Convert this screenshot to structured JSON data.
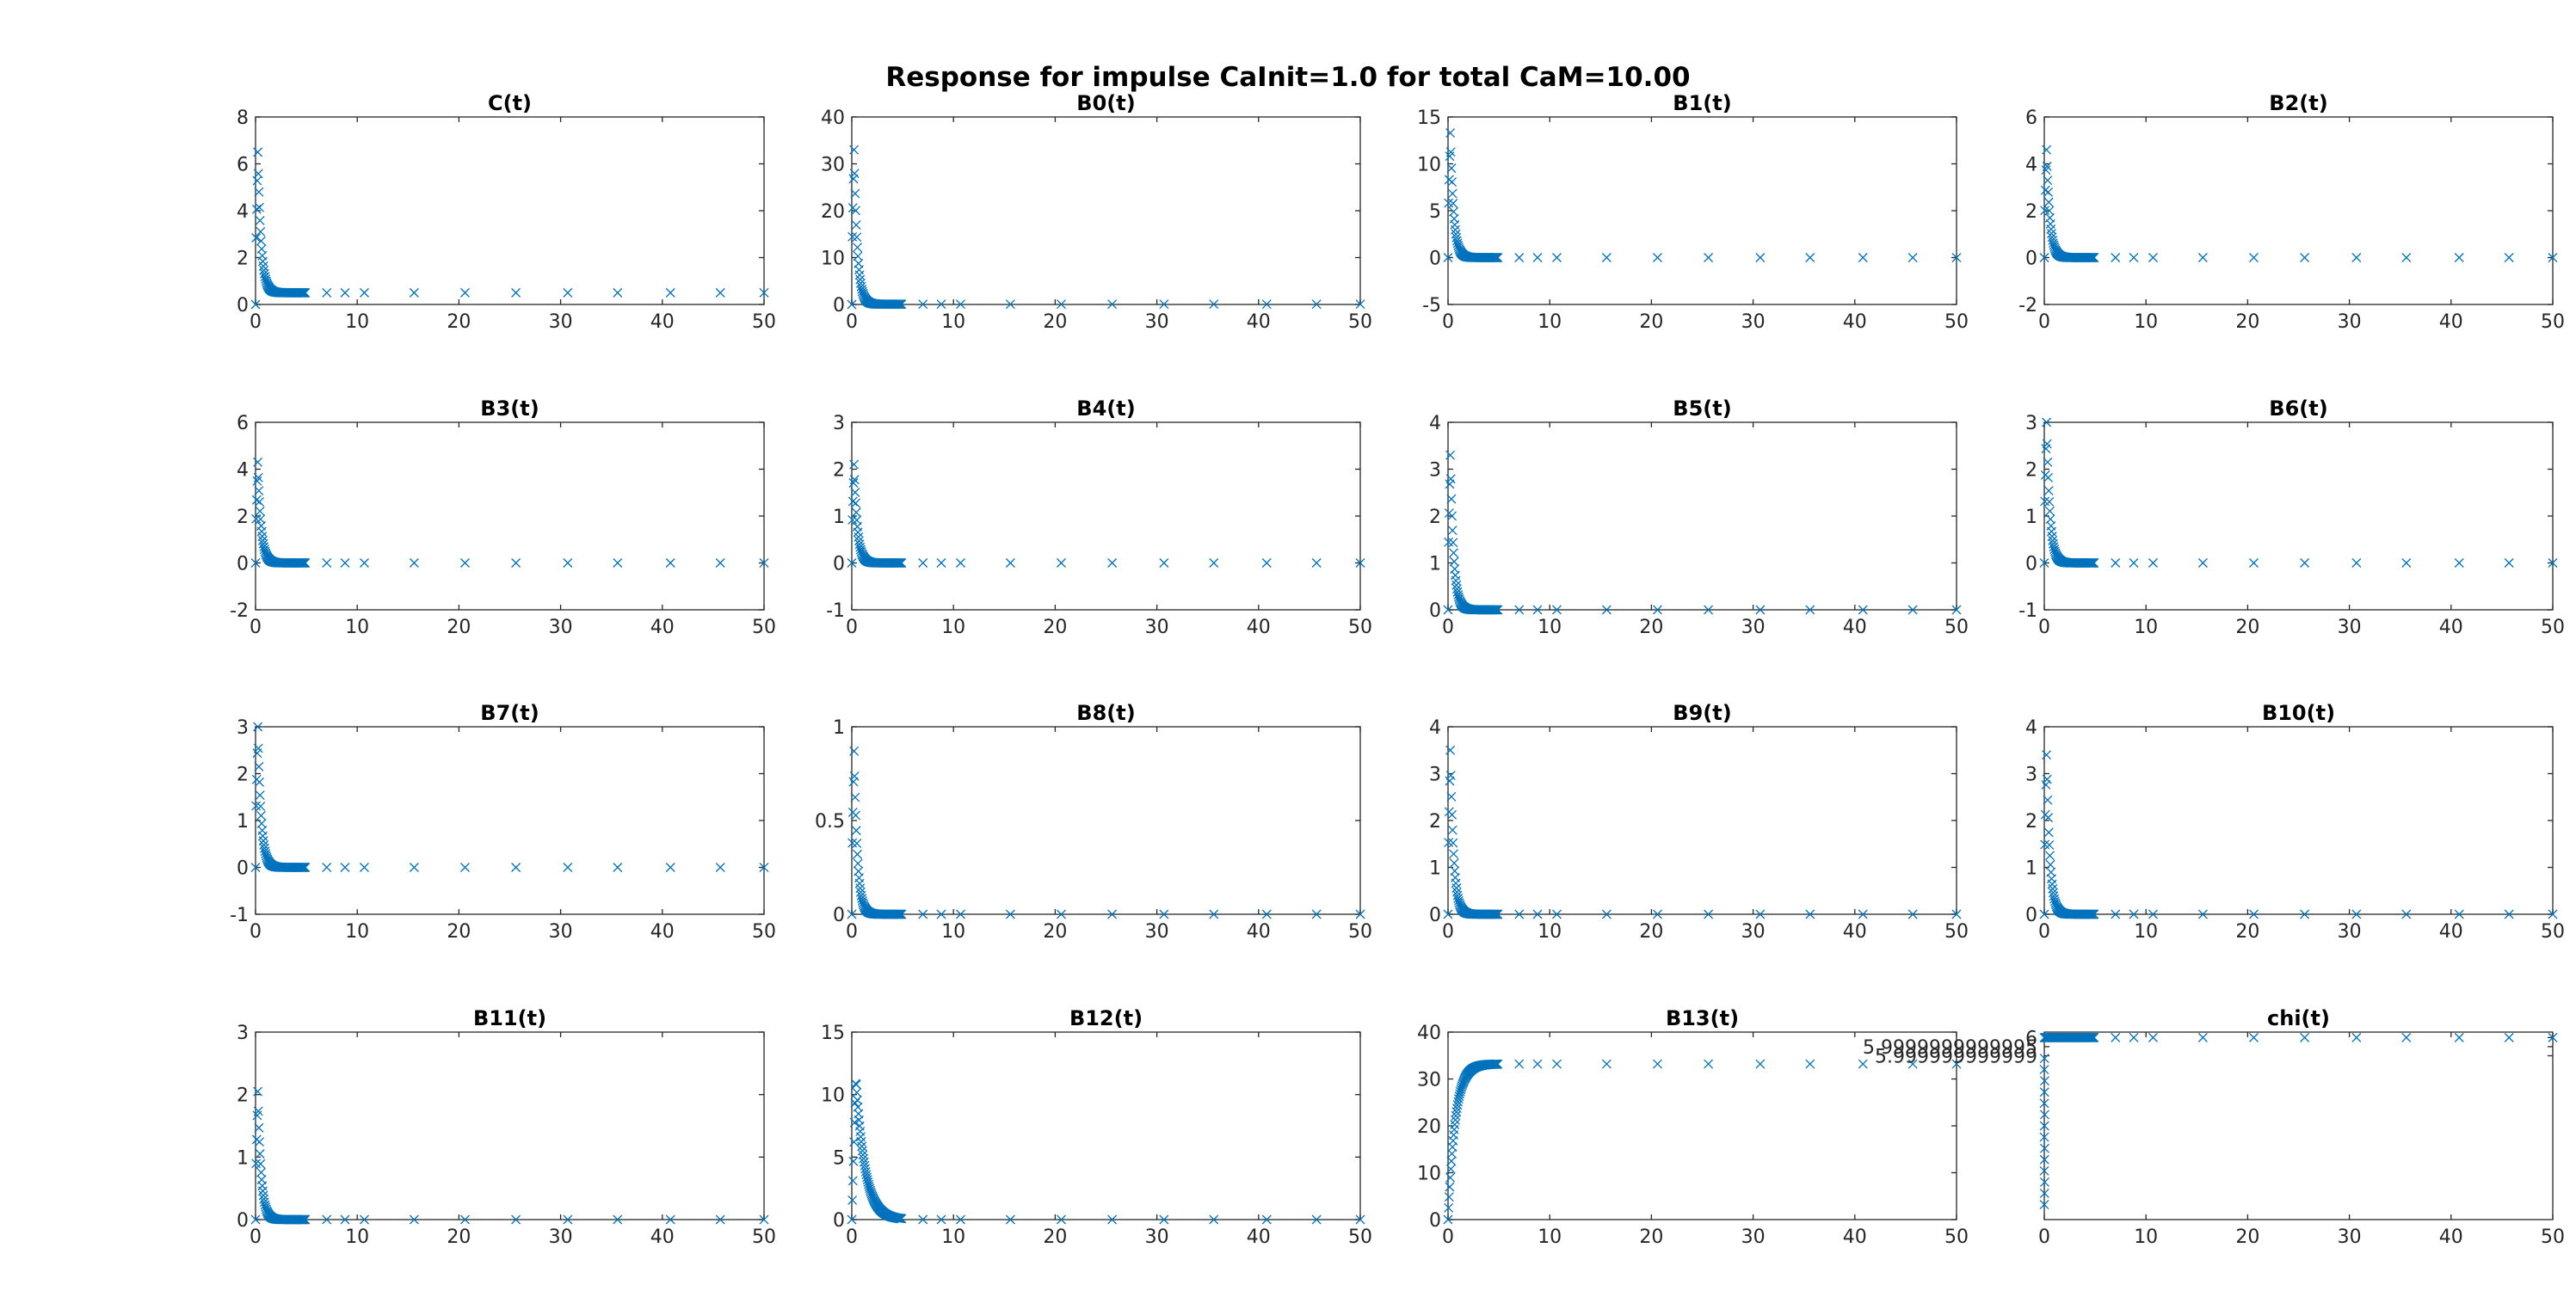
{
  "figure_title": "Response for impulse CaInit=1.0 for total CaM=10.00",
  "colors": {
    "series": "#0072BD",
    "axis": "#262626",
    "background": "#ffffff"
  },
  "marker": "x",
  "chart_data": [
    {
      "type": "scatter",
      "title": "C(t)",
      "xlim": [
        0,
        50
      ],
      "ylim": [
        0,
        8
      ],
      "xticks": [
        "0",
        "10",
        "20",
        "30",
        "40",
        "50"
      ],
      "yticks": [
        "0",
        "2",
        "4",
        "6",
        "8"
      ],
      "profile": "decay",
      "peak": 6.5,
      "final": 0.5
    },
    {
      "type": "scatter",
      "title": "B0(t)",
      "xlim": [
        0,
        50
      ],
      "ylim": [
        0,
        40
      ],
      "xticks": [
        "0",
        "10",
        "20",
        "30",
        "40",
        "50"
      ],
      "yticks": [
        "0",
        "10",
        "20",
        "30",
        "40"
      ],
      "profile": "decay",
      "peak": 33,
      "final": 0.05
    },
    {
      "type": "scatter",
      "title": "B1(t)",
      "xlim": [
        0,
        50
      ],
      "ylim": [
        -5,
        15
      ],
      "xticks": [
        "0",
        "10",
        "20",
        "30",
        "40",
        "50"
      ],
      "yticks": [
        "-5",
        "0",
        "5",
        "10",
        "15"
      ],
      "profile": "decay",
      "peak": 13.3,
      "final": 0
    },
    {
      "type": "scatter",
      "title": "B2(t)",
      "xlim": [
        0,
        50
      ],
      "ylim": [
        -2,
        6
      ],
      "xticks": [
        "0",
        "10",
        "20",
        "30",
        "40",
        "50"
      ],
      "yticks": [
        "-2",
        "0",
        "2",
        "4",
        "6"
      ],
      "profile": "decay",
      "peak": 4.6,
      "final": 0
    },
    {
      "type": "scatter",
      "title": "B3(t)",
      "xlim": [
        0,
        50
      ],
      "ylim": [
        -2,
        6
      ],
      "xticks": [
        "0",
        "10",
        "20",
        "30",
        "40",
        "50"
      ],
      "yticks": [
        "-2",
        "0",
        "2",
        "4",
        "6"
      ],
      "profile": "decay",
      "peak": 4.3,
      "final": 0
    },
    {
      "type": "scatter",
      "title": "B4(t)",
      "xlim": [
        0,
        50
      ],
      "ylim": [
        -1,
        3
      ],
      "xticks": [
        "0",
        "10",
        "20",
        "30",
        "40",
        "50"
      ],
      "yticks": [
        "-1",
        "0",
        "1",
        "2",
        "3"
      ],
      "profile": "decay",
      "peak": 2.1,
      "final": 0
    },
    {
      "type": "scatter",
      "title": "B5(t)",
      "xlim": [
        0,
        50
      ],
      "ylim": [
        0,
        4
      ],
      "xticks": [
        "0",
        "10",
        "20",
        "30",
        "40",
        "50"
      ],
      "yticks": [
        "0",
        "1",
        "2",
        "3",
        "4"
      ],
      "profile": "decay",
      "peak": 3.3,
      "final": 0
    },
    {
      "type": "scatter",
      "title": "B6(t)",
      "xlim": [
        0,
        50
      ],
      "ylim": [
        -1,
        3
      ],
      "xticks": [
        "0",
        "10",
        "20",
        "30",
        "40",
        "50"
      ],
      "yticks": [
        "-1",
        "0",
        "1",
        "2",
        "3"
      ],
      "profile": "decay",
      "peak": 3,
      "final": 0
    },
    {
      "type": "scatter",
      "title": "B7(t)",
      "xlim": [
        0,
        50
      ],
      "ylim": [
        -1,
        3
      ],
      "xticks": [
        "0",
        "10",
        "20",
        "30",
        "40",
        "50"
      ],
      "yticks": [
        "-1",
        "0",
        "1",
        "2",
        "3"
      ],
      "profile": "decay",
      "peak": 3,
      "final": 0
    },
    {
      "type": "scatter",
      "title": "B8(t)",
      "xlim": [
        0,
        50
      ],
      "ylim": [
        0,
        1
      ],
      "xticks": [
        "0",
        "10",
        "20",
        "30",
        "40",
        "50"
      ],
      "yticks": [
        "0",
        "0.5",
        "1"
      ],
      "profile": "decay",
      "peak": 0.87,
      "final": 0
    },
    {
      "type": "scatter",
      "title": "B9(t)",
      "xlim": [
        0,
        50
      ],
      "ylim": [
        0,
        4
      ],
      "xticks": [
        "0",
        "10",
        "20",
        "30",
        "40",
        "50"
      ],
      "yticks": [
        "0",
        "1",
        "2",
        "3",
        "4"
      ],
      "profile": "decay",
      "peak": 3.5,
      "final": 0
    },
    {
      "type": "scatter",
      "title": "B10(t)",
      "xlim": [
        0,
        50
      ],
      "ylim": [
        0,
        4
      ],
      "xticks": [
        "0",
        "10",
        "20",
        "30",
        "40",
        "50"
      ],
      "yticks": [
        "0",
        "1",
        "2",
        "3",
        "4"
      ],
      "profile": "decay",
      "peak": 3.4,
      "final": 0
    },
    {
      "type": "scatter",
      "title": "B11(t)",
      "xlim": [
        0,
        50
      ],
      "ylim": [
        0,
        3
      ],
      "xticks": [
        "0",
        "10",
        "20",
        "30",
        "40",
        "50"
      ],
      "yticks": [
        "0",
        "1",
        "2",
        "3"
      ],
      "profile": "decay",
      "peak": 2.05,
      "final": 0
    },
    {
      "type": "scatter",
      "title": "B12(t)",
      "xlim": [
        0,
        50
      ],
      "ylim": [
        0,
        15
      ],
      "xticks": [
        "0",
        "10",
        "20",
        "30",
        "40",
        "50"
      ],
      "yticks": [
        "0",
        "5",
        "10",
        "15"
      ],
      "profile": "slowdecay",
      "peak": 11.3,
      "final": 0
    },
    {
      "type": "scatter",
      "title": "B13(t)",
      "xlim": [
        0,
        50
      ],
      "ylim": [
        0,
        40
      ],
      "xticks": [
        "0",
        "10",
        "20",
        "30",
        "40",
        "50"
      ],
      "yticks": [
        "0",
        "10",
        "20",
        "30",
        "40"
      ],
      "profile": "rise",
      "peak": 33.2,
      "final": 33.2
    },
    {
      "type": "scatter",
      "title": "chi(t)",
      "xlim": [
        0,
        50
      ],
      "ylim": [
        5.99999999999,
        6.0000000000003
      ],
      "xticks": [
        "0",
        "10",
        "20",
        "30",
        "40",
        "50"
      ],
      "yticks": [
        "5.999999999999",
        "5.9999999999995",
        "6"
      ],
      "profile": "chi",
      "peak": 6,
      "final": 6
    }
  ]
}
